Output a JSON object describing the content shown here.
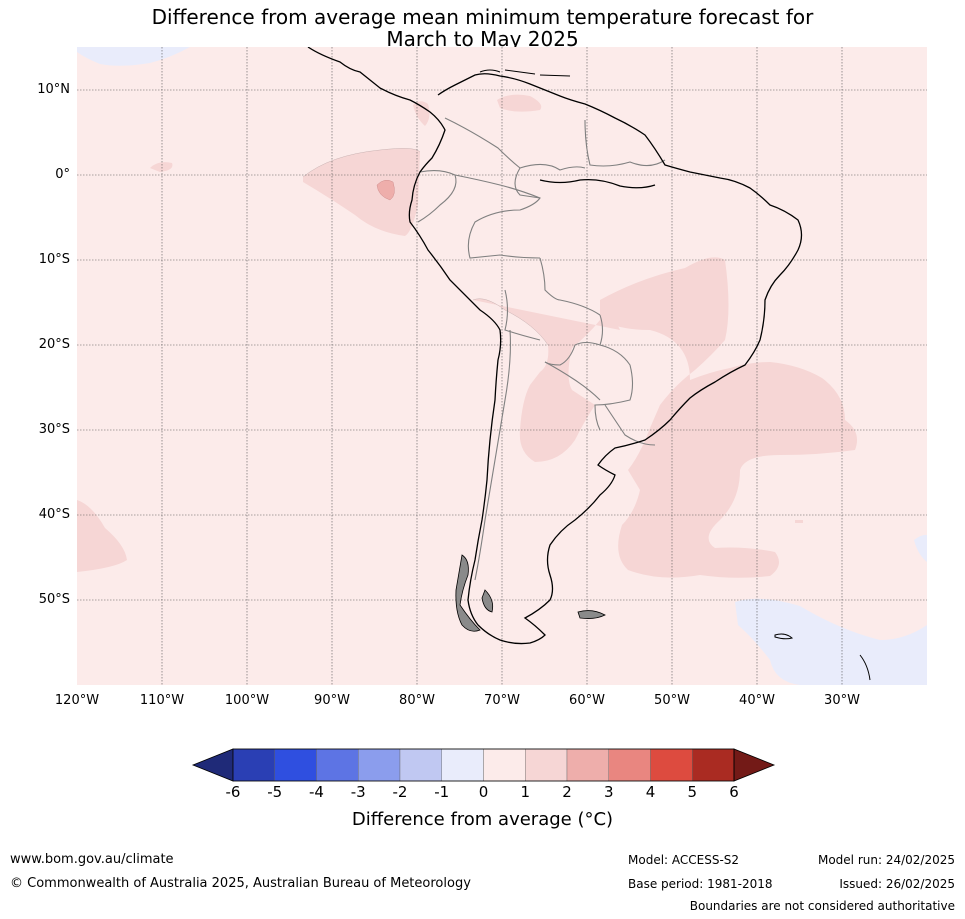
{
  "title_line1": "Difference from average mean minimum temperature forecast for",
  "title_line2": "March to May 2025",
  "lat_labels": [
    "10°N",
    "0°",
    "10°S",
    "20°S",
    "30°S",
    "40°S",
    "50°S"
  ],
  "lon_labels": [
    "120°W",
    "110°W",
    "100°W",
    "90°W",
    "80°W",
    "70°W",
    "60°W",
    "50°W",
    "40°W",
    "30°W"
  ],
  "colorbar": {
    "ticks": [
      "-6",
      "-5",
      "-4",
      "-3",
      "-2",
      "-1",
      "0",
      "1",
      "2",
      "3",
      "4",
      "5",
      "6"
    ],
    "colors": [
      "#1f2a78",
      "#2a3fb4",
      "#2f4fe0",
      "#5d74e4",
      "#8b9ded",
      "#c0c8f2",
      "#e9ecfb",
      "#fcebea",
      "#f6d6d5",
      "#eeaeab",
      "#e98680",
      "#dd4b3f",
      "#aa2b22",
      "#731a17"
    ],
    "label": "Difference from average (°C)"
  },
  "map_colors": {
    "background": "#fcebea",
    "warm": "#f6d6d5",
    "warmer": "#eeaeab",
    "cool": "#e9ecfb",
    "land_outline": "#000000",
    "borders": "#808080"
  },
  "footer": {
    "url": "www.bom.gov.au/climate",
    "copyright": "© Commonwealth of Australia 2025, Australian Bureau of Meteorology",
    "model": "Model: ACCESS-S2",
    "base_period": "Base period: 1981-2018",
    "model_run": "Model run: 24/02/2025",
    "issued": "Issued: 26/02/2025",
    "disclaimer": "Boundaries are not considered authoritative"
  }
}
